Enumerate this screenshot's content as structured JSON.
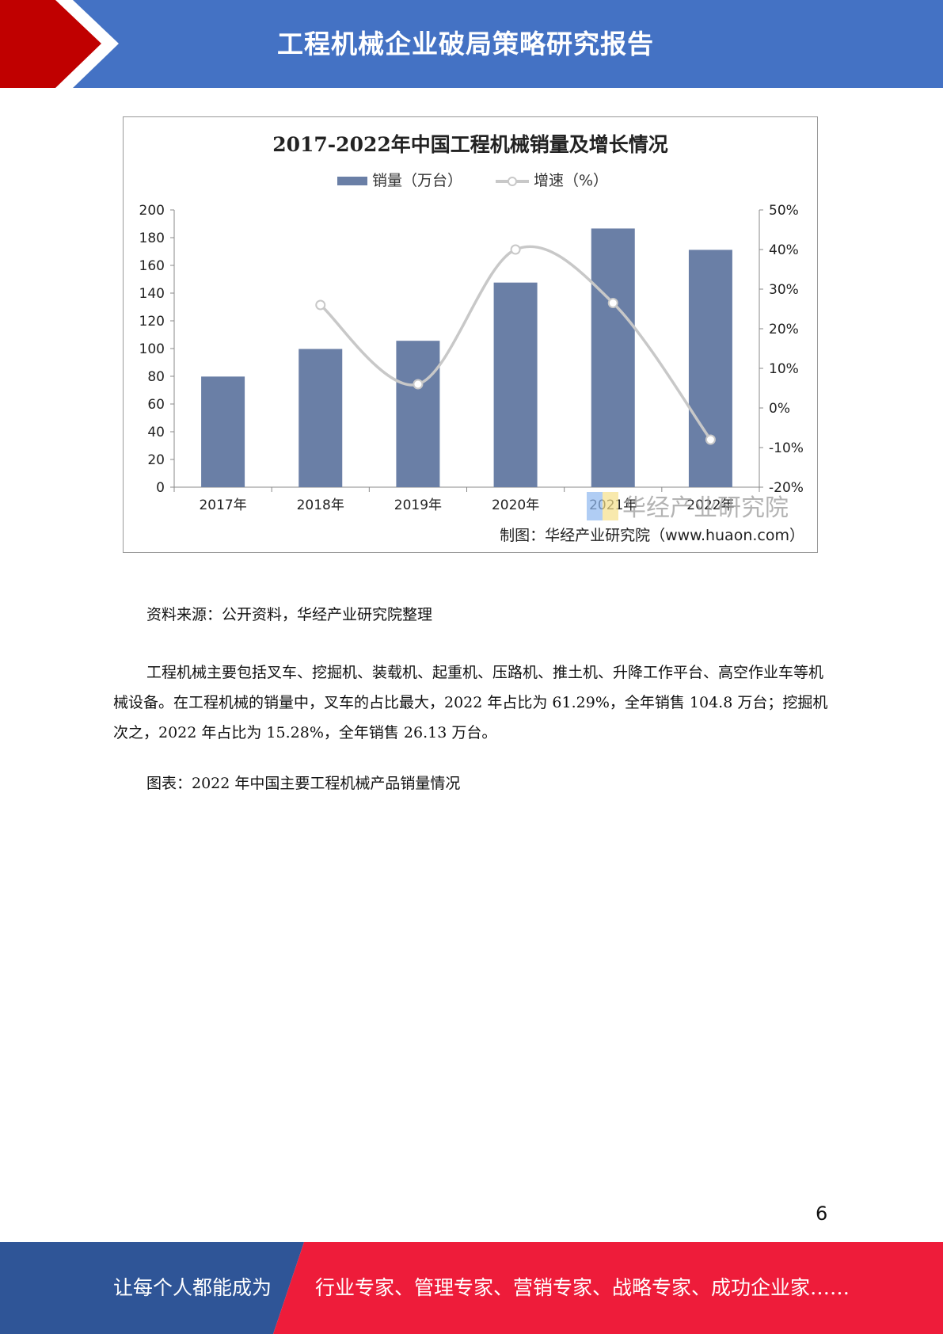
{
  "header": {
    "title": "工程机械企业破局策略研究报告"
  },
  "chart_data": {
    "type": "bar",
    "title": "2017-2022年中国工程机械销量及增长情况",
    "categories": [
      "2017年",
      "2018年",
      "2019年",
      "2020年",
      "2021年",
      "2022年"
    ],
    "series": [
      {
        "name": "销量（万台）",
        "type": "bar",
        "axis": "left",
        "values": [
          79.8,
          99.7,
          105.6,
          147.6,
          186.6,
          171.2
        ]
      },
      {
        "name": "增速（%）",
        "type": "line",
        "axis": "right",
        "values": [
          null,
          26,
          6,
          40,
          26.5,
          -8
        ]
      }
    ],
    "ylim_left": [
      0,
      200
    ],
    "yticks_left": [
      "0",
      "20",
      "40",
      "60",
      "80",
      "100",
      "120",
      "140",
      "160",
      "180",
      "200"
    ],
    "ylim_right": [
      -20,
      50
    ],
    "yticks_right": [
      "-20%",
      "-10%",
      "0%",
      "10%",
      "20%",
      "30%",
      "40%",
      "50%"
    ],
    "legend_position": "top",
    "watermark": "华经产业研究院",
    "credit": "制图：华经产业研究院（www.huaon.com）",
    "colors": {
      "bar": "#6a7fa6",
      "line": "#c8c8c8"
    }
  },
  "source_text": "资料来源：公开资料，华经产业研究院整理",
  "body_text": "工程机械主要包括叉车、挖掘机、装载机、起重机、压路机、推土机、升降工作平台、高空作业车等机械设备。在工程机械的销量中，叉车的占比最大，2022 年占比为 61.29%，全年销售 104.8 万台；挖掘机次之，2022 年占比为 15.28%，全年销售 26.13 万台。",
  "figure_caption": "图表：2022 年中国主要工程机械产品销量情况",
  "page_number": "6",
  "footer": {
    "left_text": "让每个人都能成为",
    "right_text": "行业专家、管理专家、营销专家、战略专家、成功企业家……",
    "colors": {
      "left": "#2f5597",
      "right": "#ee1c3a"
    }
  }
}
